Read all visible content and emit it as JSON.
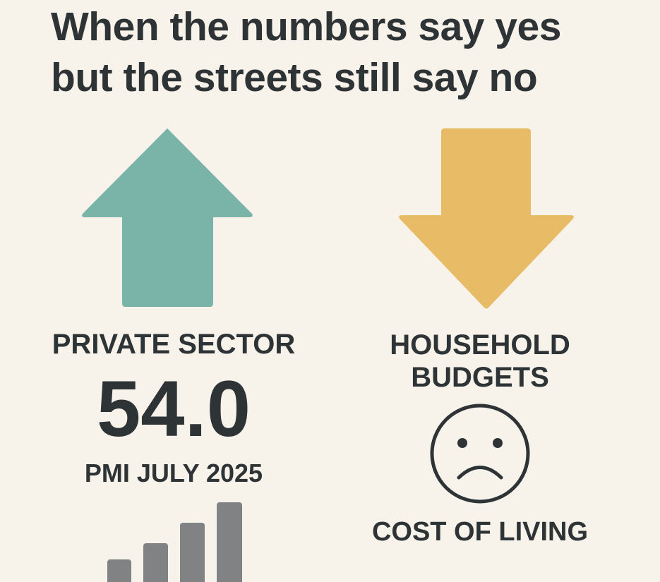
{
  "title": "When the numbers say yes but the streets still say no",
  "left": {
    "label": "PRIVATE SECTOR",
    "figure": "54.0",
    "caption": "PMI JULY 2025"
  },
  "right": {
    "label": "HOUSEHOLD BUDGETS",
    "caption": "COST OF LIVING"
  }
}
